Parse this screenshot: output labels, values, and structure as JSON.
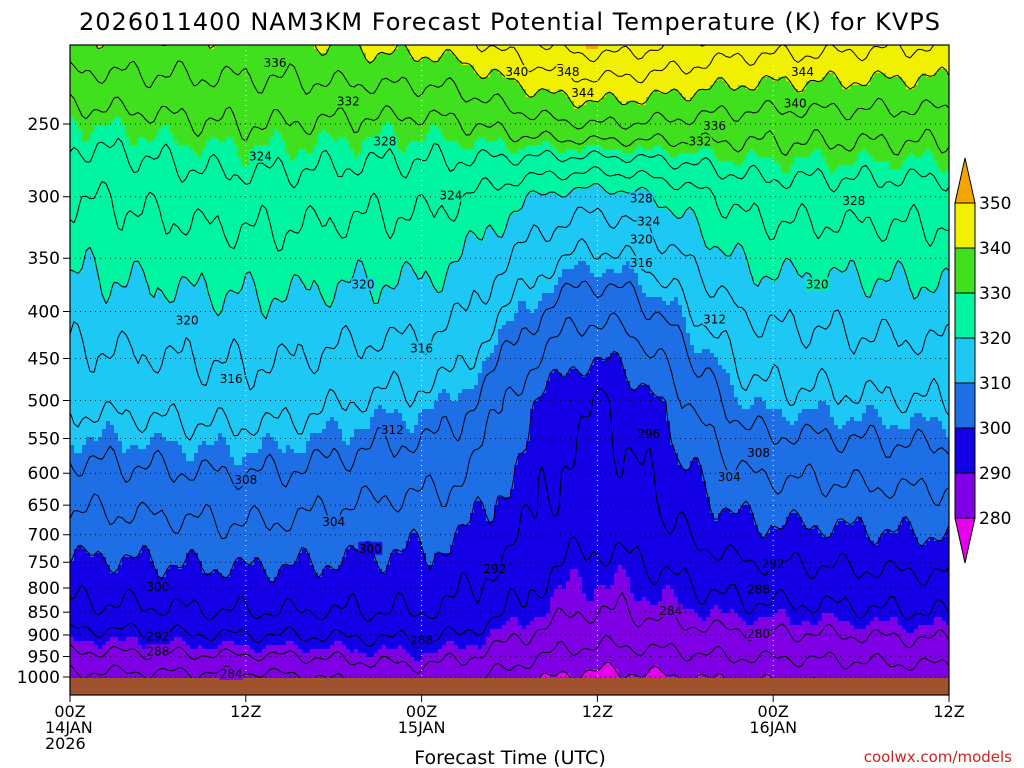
{
  "chart_data": {
    "type": "heatmap",
    "title": "2026011400 NAM3KM Forecast Potential Temperature (K) for KVPS",
    "xlabel": "Forecast Time (UTC)",
    "ylabel": "",
    "credit": "coolwx.com/models",
    "x_ticks": [
      {
        "hour": 0,
        "lines": [
          "00Z",
          "14JAN",
          "2026"
        ]
      },
      {
        "hour": 12,
        "lines": [
          "12Z"
        ]
      },
      {
        "hour": 24,
        "lines": [
          "00Z",
          "15JAN"
        ]
      },
      {
        "hour": 36,
        "lines": [
          "12Z"
        ]
      },
      {
        "hour": 48,
        "lines": [
          "00Z",
          "16JAN"
        ]
      },
      {
        "hour": 60,
        "lines": [
          "12Z"
        ]
      }
    ],
    "xlim": [
      0,
      60
    ],
    "y_ticks": [
      250,
      300,
      350,
      400,
      450,
      500,
      550,
      600,
      650,
      700,
      750,
      800,
      850,
      900,
      950,
      1000
    ],
    "ylim": [
      1010,
      205
    ],
    "colorbar": {
      "ticks": [
        280,
        290,
        300,
        310,
        320,
        330,
        340,
        350
      ],
      "colors": [
        "#e600f0",
        "#8000e6",
        "#1400e6",
        "#1e6ee6",
        "#1ec8f5",
        "#00f5a0",
        "#40e01e",
        "#f0f000",
        "#f5a500"
      ]
    },
    "profiles": [
      {
        "hour": 0,
        "levels": [
          1000,
          925,
          850,
          700,
          500,
          400,
          300,
          250,
          210
        ],
        "theta": [
          283,
          289,
          295,
          302,
          313,
          318,
          324,
          330,
          338
        ]
      },
      {
        "hour": 12,
        "levels": [
          1000,
          925,
          850,
          700,
          500,
          400,
          300,
          250,
          210
        ],
        "theta": [
          283,
          290,
          296,
          303,
          314,
          319,
          326,
          332,
          338
        ]
      },
      {
        "hour": 24,
        "levels": [
          1000,
          925,
          850,
          700,
          500,
          400,
          300,
          250,
          210
        ],
        "theta": [
          286,
          291,
          296,
          301,
          311,
          318,
          325,
          331,
          340
        ]
      },
      {
        "hour": 36,
        "levels": [
          1000,
          925,
          850,
          700,
          500,
          400,
          300,
          250,
          210
        ],
        "theta": [
          279,
          284,
          288,
          293,
          296,
          305,
          318,
          336,
          348
        ]
      },
      {
        "hour": 48,
        "levels": [
          1000,
          925,
          850,
          700,
          500,
          400,
          300,
          250,
          210
        ],
        "theta": [
          281,
          286,
          291,
          299,
          311,
          317,
          326,
          334,
          344
        ]
      },
      {
        "hour": 60,
        "levels": [
          1000,
          925,
          850,
          700,
          500,
          400,
          300,
          250,
          210
        ],
        "theta": [
          282,
          287,
          292,
          300,
          312,
          318,
          326,
          334,
          343
        ]
      }
    ],
    "contour_labels": [
      {
        "text": "336",
        "hour": 14.0,
        "level": 215
      },
      {
        "text": "340",
        "hour": 30.5,
        "level": 220
      },
      {
        "text": "348",
        "hour": 34.0,
        "level": 220
      },
      {
        "text": "344",
        "hour": 35.0,
        "level": 232
      },
      {
        "text": "344",
        "hour": 50.0,
        "level": 220
      },
      {
        "text": "332",
        "hour": 19.0,
        "level": 237
      },
      {
        "text": "340",
        "hour": 49.5,
        "level": 238
      },
      {
        "text": "336",
        "hour": 44.0,
        "level": 252
      },
      {
        "text": "332",
        "hour": 43.0,
        "level": 262
      },
      {
        "text": "328",
        "hour": 21.5,
        "level": 262
      },
      {
        "text": "324",
        "hour": 13.0,
        "level": 272
      },
      {
        "text": "328",
        "hour": 39.0,
        "level": 302
      },
      {
        "text": "324",
        "hour": 26.0,
        "level": 300
      },
      {
        "text": "328",
        "hour": 53.5,
        "level": 304
      },
      {
        "text": "324",
        "hour": 39.5,
        "level": 320
      },
      {
        "text": "320",
        "hour": 39.0,
        "level": 335
      },
      {
        "text": "316",
        "hour": 39.0,
        "level": 355
      },
      {
        "text": "320",
        "hour": 20.0,
        "level": 375
      },
      {
        "text": "320",
        "hour": 51.0,
        "level": 375
      },
      {
        "text": "320",
        "hour": 8.0,
        "level": 410
      },
      {
        "text": "312",
        "hour": 44.0,
        "level": 409
      },
      {
        "text": "316",
        "hour": 24.0,
        "level": 440
      },
      {
        "text": "316",
        "hour": 11.0,
        "level": 475
      },
      {
        "text": "312",
        "hour": 22.0,
        "level": 540
      },
      {
        "text": "296",
        "hour": 39.5,
        "level": 545
      },
      {
        "text": "308",
        "hour": 47.0,
        "level": 572
      },
      {
        "text": "308",
        "hour": 12.0,
        "level": 612
      },
      {
        "text": "304",
        "hour": 45.0,
        "level": 607
      },
      {
        "text": "304",
        "hour": 18.0,
        "level": 680
      },
      {
        "text": "300",
        "hour": 20.5,
        "level": 727
      },
      {
        "text": "292",
        "hour": 29.0,
        "level": 765
      },
      {
        "text": "292",
        "hour": 48.0,
        "level": 755
      },
      {
        "text": "300",
        "hour": 6.0,
        "level": 800
      },
      {
        "text": "288",
        "hour": 47.0,
        "level": 805
      },
      {
        "text": "284",
        "hour": 41.0,
        "level": 850
      },
      {
        "text": "292",
        "hour": 6.0,
        "level": 906
      },
      {
        "text": "280",
        "hour": 47.0,
        "level": 900
      },
      {
        "text": "288",
        "hour": 6.0,
        "level": 940
      },
      {
        "text": "288",
        "hour": 24.0,
        "level": 915
      },
      {
        "text": "284",
        "hour": 11.0,
        "level": 995
      }
    ]
  }
}
